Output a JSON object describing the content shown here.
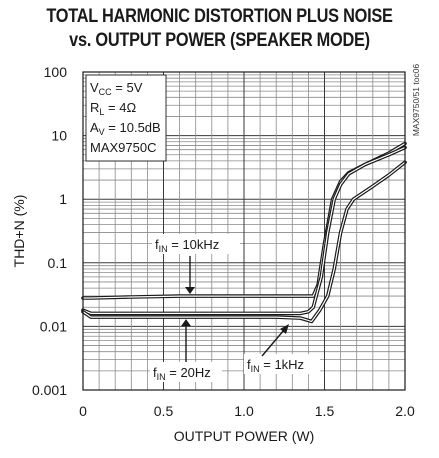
{
  "chart_data": {
    "type": "line",
    "title_lines": [
      "TOTAL HARMONIC DISTORTION PLUS NOISE",
      "vs. OUTPUT POWER (SPEAKER MODE)"
    ],
    "xlabel": "OUTPUT POWER (W)",
    "ylabel": "THD+N (%)",
    "xlim": [
      0,
      2.0
    ],
    "ylim": [
      0.001,
      100
    ],
    "y_scale": "log",
    "grid": true,
    "x_ticks": [
      0,
      0.5,
      1.0,
      1.5,
      2.0
    ],
    "x_tick_labels": [
      "0",
      "0.5",
      "1.0",
      "1.5",
      "2.0"
    ],
    "y_ticks": [
      100,
      10,
      1,
      0.1,
      0.01,
      0.001
    ],
    "y_tick_labels": [
      "100",
      "10",
      "1",
      "0.1",
      "0.01",
      "0.001"
    ],
    "conditions": [
      {
        "main": "V",
        "sub": "CC",
        "rest": " = 5V"
      },
      {
        "main": "R",
        "sub": "L",
        "rest": " = 4Ω"
      },
      {
        "main": "A",
        "sub": "V",
        "rest": " = 10.5dB"
      },
      {
        "main": "MAX9750C",
        "sub": "",
        "rest": ""
      }
    ],
    "watermark": "MAX9750/51 toc06",
    "series": [
      {
        "label_main": "f",
        "label_sub": "IN",
        "label_rest": " = 10kHz",
        "x": [
          0.0,
          0.05,
          0.3,
          0.6,
          0.9,
          1.2,
          1.4,
          1.43,
          1.46,
          1.5,
          1.55,
          1.6,
          1.65,
          1.75,
          1.9,
          2.0
        ],
        "y": [
          0.028,
          0.028,
          0.029,
          0.03,
          0.03,
          0.03,
          0.03,
          0.03,
          0.045,
          0.2,
          1.0,
          1.9,
          2.6,
          3.5,
          5.3,
          7.5
        ]
      },
      {
        "label_main": "f",
        "label_sub": "IN",
        "label_rest": " = 1kHz",
        "x": [
          0.0,
          0.05,
          0.3,
          0.6,
          0.9,
          1.2,
          1.35,
          1.4,
          1.43,
          1.48,
          1.52,
          1.56,
          1.6,
          1.65,
          1.75,
          1.9,
          2.0
        ],
        "y": [
          0.018,
          0.016,
          0.016,
          0.016,
          0.016,
          0.016,
          0.016,
          0.017,
          0.02,
          0.06,
          0.3,
          1.0,
          1.7,
          2.5,
          3.5,
          5.0,
          6.5
        ]
      },
      {
        "label_main": "f",
        "label_sub": "IN",
        "label_rest": " = 20Hz",
        "x": [
          0.0,
          0.05,
          0.3,
          0.6,
          0.9,
          1.2,
          1.35,
          1.42,
          1.47,
          1.52,
          1.56,
          1.6,
          1.64,
          1.68,
          1.8,
          1.9,
          2.0
        ],
        "y": [
          0.017,
          0.014,
          0.014,
          0.014,
          0.014,
          0.014,
          0.0135,
          0.012,
          0.018,
          0.03,
          0.08,
          0.3,
          0.7,
          1.0,
          1.6,
          2.4,
          3.8
        ]
      }
    ]
  }
}
